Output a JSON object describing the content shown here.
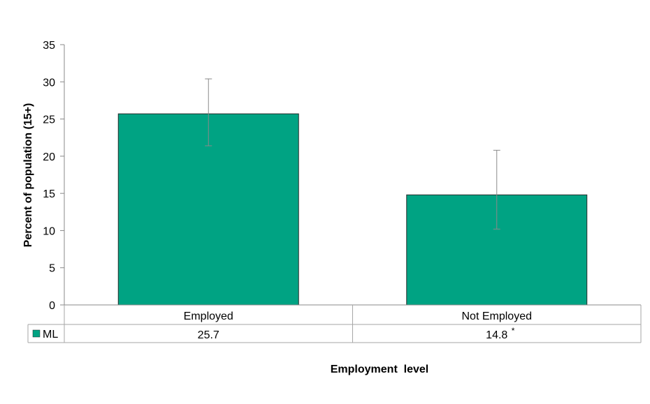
{
  "chart_data": {
    "type": "bar",
    "categories": [
      "Employed",
      "Not Employed"
    ],
    "series": [
      {
        "name": "ML",
        "values": [
          25.7,
          14.8
        ],
        "value_labels": [
          "25.7",
          "14.8"
        ],
        "value_marks": [
          "",
          "*"
        ],
        "error_low": [
          21.4,
          10.2
        ],
        "error_high": [
          30.4,
          20.8
        ],
        "color": "#00A383"
      }
    ],
    "xlabel": "Employment  level",
    "ylabel": "Percent of population (15+)",
    "ylim": [
      0,
      35
    ],
    "yticks": [
      0,
      5,
      10,
      15,
      20,
      25,
      30,
      35
    ],
    "grid": false,
    "legend": "data-table"
  }
}
